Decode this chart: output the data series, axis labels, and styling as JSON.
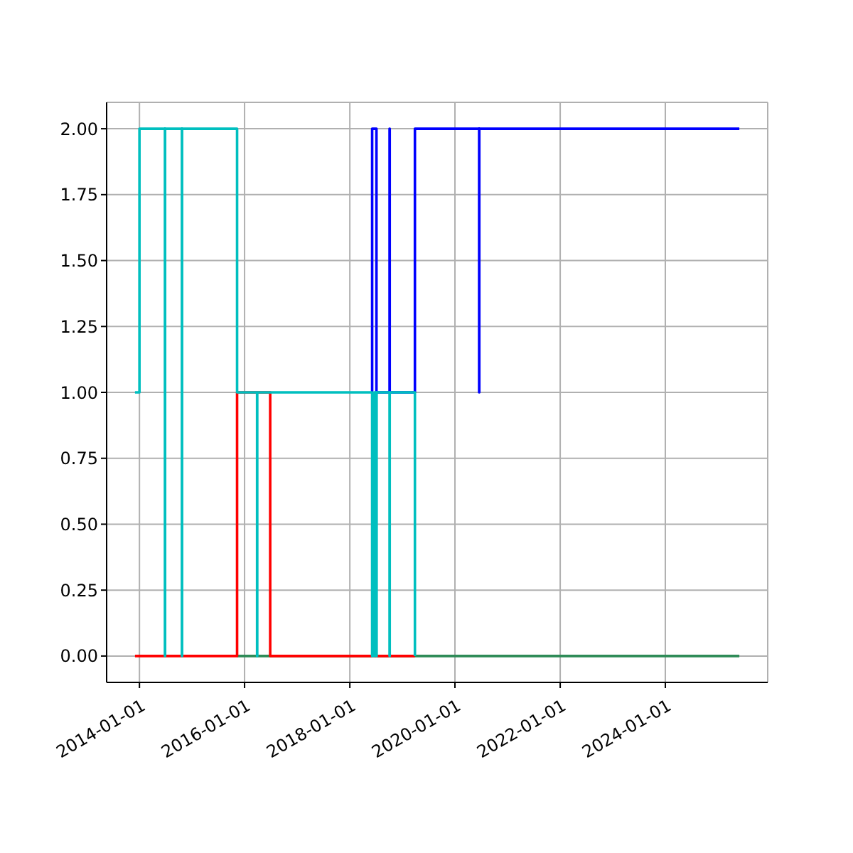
{
  "chart_data": {
    "type": "step",
    "xlim": [
      "2013-05-18",
      "2025-12-12"
    ],
    "ylim": [
      -0.1,
      2.1
    ],
    "xticks": [
      "2014-01-01",
      "2016-01-01",
      "2018-01-01",
      "2020-01-01",
      "2022-01-01",
      "2024-01-01"
    ],
    "yticks": [
      {
        "value": 0,
        "label": "0.00"
      },
      {
        "value": 0.25,
        "label": "0.25"
      },
      {
        "value": 0.5,
        "label": "0.50"
      },
      {
        "value": 0.75,
        "label": "0.75"
      },
      {
        "value": 1,
        "label": "1.00"
      },
      {
        "value": 1.25,
        "label": "1.25"
      },
      {
        "value": 1.5,
        "label": "1.50"
      },
      {
        "value": 1.75,
        "label": "1.75"
      },
      {
        "value": 2,
        "label": "2.00"
      }
    ],
    "grid": true,
    "series": [
      {
        "color": "#2e8b57",
        "x": [
          "2015-11-10",
          "2025-05-29"
        ],
        "values": [
          0,
          0
        ]
      },
      {
        "color": "#ff0000",
        "x": [
          "2013-12-01",
          "2015-11-10",
          "2016-06-27",
          "2019-03-29"
        ],
        "values": [
          0,
          1,
          0,
          0
        ]
      },
      {
        "color": "#0000ff",
        "x": [
          "2018-06-01",
          "2018-06-05",
          "2018-07-05",
          "2018-10-04",
          "2018-10-05",
          "2019-03-29",
          "2020-06-17",
          "2020-06-18",
          "2025-05-29"
        ],
        "values": [
          1,
          2,
          1,
          2,
          1,
          2,
          1,
          2,
          2
        ]
      },
      {
        "color": "#00bfbf",
        "x": [
          "2013-12-01",
          "2014-01-01",
          "2014-06-27",
          "2014-06-28",
          "2014-10-23",
          "2014-10-24",
          "2015-11-10",
          "2016-03-28",
          "2016-03-29",
          "2018-06-05",
          "2018-06-20",
          "2018-07-05",
          "2018-07-06",
          "2018-10-04",
          "2018-10-05",
          "2019-03-29"
        ],
        "values": [
          1,
          2,
          0,
          2,
          0,
          2,
          1,
          0,
          1,
          0,
          1,
          0,
          1,
          0,
          1,
          0
        ]
      }
    ]
  }
}
